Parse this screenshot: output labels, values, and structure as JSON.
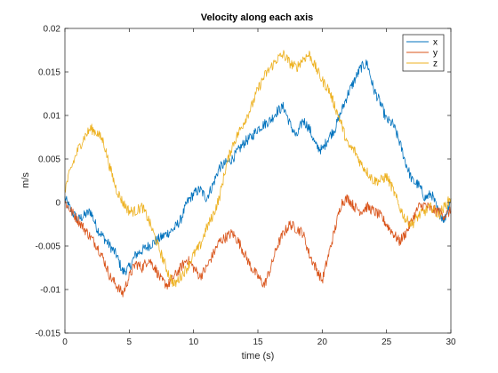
{
  "chart_data": {
    "type": "line",
    "title": "Velocity along each axis",
    "xlabel": "time (s)",
    "ylabel": "m/s",
    "xlim": [
      0,
      30
    ],
    "ylim": [
      -0.015,
      0.02
    ],
    "x_ticks": [
      0,
      5,
      10,
      15,
      20,
      25,
      30
    ],
    "x_tick_labels": [
      "0",
      "5",
      "10",
      "15",
      "20",
      "25",
      "30"
    ],
    "y_ticks": [
      -0.015,
      -0.01,
      -0.005,
      0,
      0.005,
      0.01,
      0.015,
      0.02
    ],
    "y_tick_labels": [
      "-0.015",
      "-0.01",
      "-0.005",
      "0",
      "0.005",
      "0.01",
      "0.015",
      "0.02"
    ],
    "grid": false,
    "legend_position": "top-right",
    "series": [
      {
        "name": "x",
        "color": "#0072BD",
        "x": [
          0,
          0.5,
          1,
          1.5,
          2,
          2.5,
          3,
          3.5,
          4,
          4.5,
          5,
          5.5,
          6,
          6.5,
          7,
          7.5,
          8,
          8.5,
          9,
          9.5,
          10,
          10.5,
          11,
          11.5,
          12,
          12.5,
          13,
          13.5,
          14,
          14.5,
          15,
          15.5,
          16,
          16.5,
          17,
          17.5,
          18,
          18.5,
          19,
          19.5,
          20,
          20.5,
          21,
          21.5,
          22,
          22.5,
          23,
          23.5,
          24,
          24.5,
          25,
          25.5,
          26,
          26.5,
          27,
          27.5,
          28,
          28.5,
          29,
          29.5,
          30
        ],
        "y": [
          0.0005,
          -0.001,
          -0.002,
          -0.0015,
          -0.001,
          -0.003,
          -0.004,
          -0.005,
          -0.006,
          -0.008,
          -0.0075,
          -0.006,
          -0.0055,
          -0.005,
          -0.0045,
          -0.004,
          -0.0035,
          -0.003,
          -0.002,
          0.0,
          0.001,
          0.0015,
          0.0005,
          0.002,
          0.004,
          0.0045,
          0.005,
          0.006,
          0.007,
          0.0075,
          0.0085,
          0.009,
          0.0095,
          0.0105,
          0.011,
          0.009,
          0.0075,
          0.0095,
          0.0085,
          0.0065,
          0.006,
          0.0075,
          0.0085,
          0.0105,
          0.0125,
          0.014,
          0.0155,
          0.016,
          0.013,
          0.0115,
          0.0095,
          0.009,
          0.007,
          0.0045,
          0.0025,
          0.002,
          0.0005,
          0.001,
          -0.001,
          -0.002,
          0.0005
        ]
      },
      {
        "name": "y",
        "color": "#D95319",
        "x": [
          0,
          0.5,
          1,
          1.5,
          2,
          2.5,
          3,
          3.5,
          4,
          4.5,
          5,
          5.5,
          6,
          6.5,
          7,
          7.5,
          8,
          8.5,
          9,
          9.5,
          10,
          10.5,
          11,
          11.5,
          12,
          12.5,
          13,
          13.5,
          14,
          14.5,
          15,
          15.5,
          16,
          16.5,
          17,
          17.5,
          18,
          18.5,
          19,
          19.5,
          20,
          20.5,
          21,
          21.5,
          22,
          22.5,
          23,
          23.5,
          24,
          24.5,
          25,
          25.5,
          26,
          26.5,
          27,
          27.5,
          28,
          28.5,
          29,
          29.5,
          30
        ],
        "y": [
          0.0,
          -0.001,
          -0.002,
          -0.003,
          -0.004,
          -0.005,
          -0.0065,
          -0.0085,
          -0.0095,
          -0.0105,
          -0.0085,
          -0.007,
          -0.0075,
          -0.0065,
          -0.0075,
          -0.009,
          -0.0095,
          -0.0085,
          -0.0075,
          -0.0065,
          -0.0075,
          -0.0085,
          -0.0075,
          -0.006,
          -0.0045,
          -0.004,
          -0.0035,
          -0.0045,
          -0.006,
          -0.0075,
          -0.0085,
          -0.0095,
          -0.0075,
          -0.005,
          -0.0035,
          -0.0025,
          -0.003,
          -0.0035,
          -0.006,
          -0.0075,
          -0.009,
          -0.006,
          -0.003,
          0.0,
          0.0005,
          -0.0005,
          -0.001,
          -0.0005,
          -0.001,
          -0.0015,
          -0.0025,
          -0.0035,
          -0.0045,
          -0.0035,
          -0.002,
          -0.0005,
          -0.0003,
          -0.0008,
          -0.001,
          -0.0015,
          -0.001
        ]
      },
      {
        "name": "z",
        "color": "#EDB120",
        "x": [
          0,
          0.5,
          1,
          1.5,
          2,
          2.5,
          3,
          3.5,
          4,
          4.5,
          5,
          5.5,
          6,
          6.5,
          7,
          7.5,
          8,
          8.5,
          9,
          9.5,
          10,
          10.5,
          11,
          11.5,
          12,
          12.5,
          13,
          13.5,
          14,
          14.5,
          15,
          15.5,
          16,
          16.5,
          17,
          17.5,
          18,
          18.5,
          19,
          19.5,
          20,
          20.5,
          21,
          21.5,
          22,
          22.5,
          23,
          23.5,
          24,
          24.5,
          25,
          25.5,
          26,
          26.5,
          27,
          27.5,
          28,
          28.5,
          29,
          29.5,
          30
        ],
        "y": [
          0.0015,
          0.004,
          0.006,
          0.0075,
          0.0085,
          0.008,
          0.007,
          0.004,
          0.0015,
          0.0,
          -0.001,
          -0.001,
          -0.0005,
          -0.002,
          -0.004,
          -0.006,
          -0.008,
          -0.0095,
          -0.0085,
          -0.0075,
          -0.006,
          -0.005,
          -0.003,
          -0.0015,
          0.0005,
          0.004,
          0.0065,
          0.008,
          0.0095,
          0.011,
          0.013,
          0.0145,
          0.0155,
          0.0165,
          0.017,
          0.016,
          0.0155,
          0.0165,
          0.017,
          0.0155,
          0.014,
          0.013,
          0.011,
          0.009,
          0.0065,
          0.006,
          0.0045,
          0.0035,
          0.0025,
          0.0025,
          0.003,
          0.0015,
          -0.0005,
          -0.002,
          -0.0025,
          -0.0015,
          -0.001,
          -0.0005,
          -0.0015,
          -0.0005,
          0.0005
        ]
      }
    ]
  }
}
